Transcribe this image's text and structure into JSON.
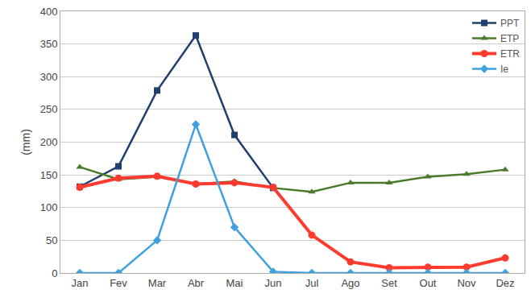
{
  "chart_data": {
    "type": "line",
    "y_label": "(mm)",
    "categories": [
      "Jan",
      "Fev",
      "Mar",
      "Abr",
      "Mai",
      "Jun",
      "Jul",
      "Ago",
      "Set",
      "Out",
      "Nov",
      "Dez"
    ],
    "ylim": [
      0,
      400
    ],
    "yticks": [
      0,
      50,
      100,
      150,
      200,
      250,
      300,
      350,
      400
    ],
    "grid": true,
    "legend": "top-right",
    "series": [
      {
        "name": "PPT",
        "color": "#1f3f6e",
        "marker": "square",
        "values": [
          132,
          163,
          279,
          363,
          211,
          130,
          null,
          null,
          null,
          null,
          null,
          null
        ]
      },
      {
        "name": "ETP",
        "color": "#4a7a2a",
        "marker": "triangle-up",
        "values": [
          162,
          143,
          147,
          136,
          140,
          130,
          124,
          138,
          138,
          147,
          151,
          158
        ]
      },
      {
        "name": "ETR",
        "color": "#ff3b2f",
        "marker": "circle",
        "values": [
          131,
          145,
          148,
          136,
          138,
          131,
          58,
          17,
          8,
          9,
          9,
          23
        ]
      },
      {
        "name": "Ie",
        "color": "#3fa0e0",
        "marker": "diamond",
        "values": [
          0,
          0,
          50,
          227,
          70,
          2,
          0,
          0,
          0,
          0,
          0,
          0
        ]
      }
    ]
  }
}
